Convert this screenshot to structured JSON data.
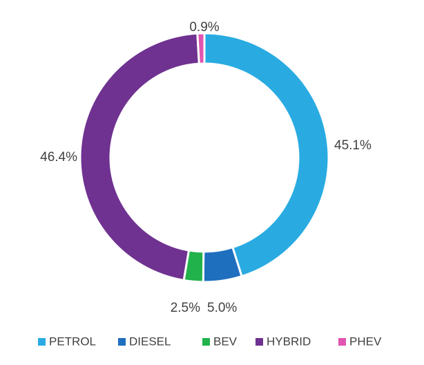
{
  "chart_data": {
    "type": "pie",
    "variant": "donut",
    "categories": [
      "PETROL",
      "DIESEL",
      "BEV",
      "HYBRID",
      "PHEV"
    ],
    "values": [
      45.1,
      5.0,
      2.5,
      46.4,
      0.9
    ],
    "data_labels": [
      "45.1%",
      "5.0%",
      "2.5%",
      "46.4%",
      "0.9%"
    ],
    "colors": [
      "#29ABE2",
      "#1F6FBF",
      "#22B24C",
      "#6F3291",
      "#E055B0"
    ],
    "legend": "bottom",
    "start_angle_deg": 0,
    "direction": "clockwise"
  }
}
